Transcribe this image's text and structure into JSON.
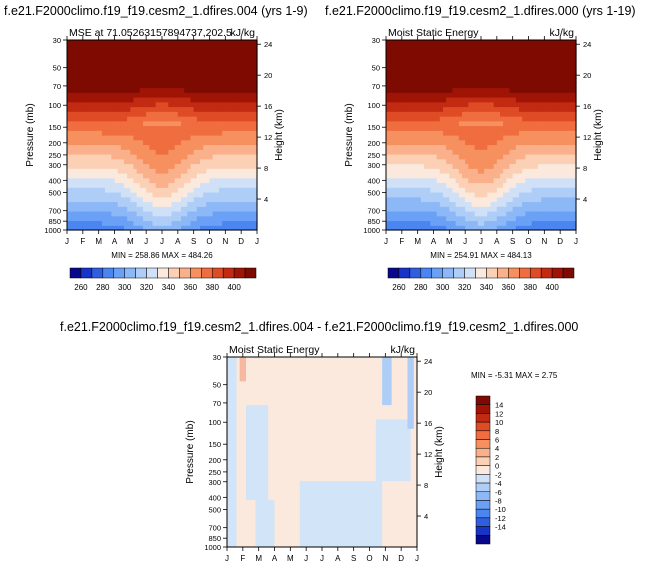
{
  "titles": {
    "left": "f.e21.F2000climo.f19_f19.cesm2_1.dfires.004 (yrs 1-9)",
    "right": "f.e21.F2000climo.f19_f19.cesm2_1.dfires.000 (yrs 1-19)",
    "bottom": "f.e21.F2000climo.f19_f19.cesm2_1.dfires.004 - f.e21.F2000climo.f19_f19.cesm2_1.dfires.000"
  },
  "chart_data": [
    {
      "type": "heatmap",
      "id": "left",
      "title_left": "MSE at 71.05263157894737,202.5",
      "title_right": "kJ/kg",
      "ylabel": "Pressure (mb)",
      "y2label": "Height (km)",
      "x_ticks": [
        "J",
        "F",
        "M",
        "A",
        "M",
        "J",
        "J",
        "A",
        "S",
        "O",
        "N",
        "D",
        "J"
      ],
      "y_ticks": [
        "30",
        "50",
        "70",
        "100",
        "150",
        "200",
        "250",
        "300",
        "400",
        "500",
        "700",
        "850",
        "1000"
      ],
      "y2_ticks": [
        "24",
        "20",
        "16",
        "12",
        "8",
        "4"
      ],
      "stats": "MIN = 258.86  MAX = 484.26",
      "colorbar_labels": [
        "260",
        "280",
        "300",
        "320",
        "340",
        "360",
        "380",
        "400"
      ],
      "colorbar_levels": [
        250,
        260,
        270,
        280,
        290,
        300,
        310,
        320,
        330,
        340,
        350,
        360,
        370,
        380,
        390,
        400,
        410
      ],
      "colors": [
        "#08088c",
        "#1733c8",
        "#2f5fe0",
        "#4a85f0",
        "#6aa0f5",
        "#8cb8f7",
        "#aecdf7",
        "#cfe0f7",
        "#fbe9dd",
        "#fbd0b5",
        "#fab08a",
        "#f6905f",
        "#ef6d3e",
        "#de4b24",
        "#c22b12",
        "#a01406",
        "#7e0b02"
      ],
      "ylim_mb": [
        1000,
        30
      ]
    },
    {
      "type": "heatmap",
      "id": "right",
      "title_left": "Moist Static Energy",
      "title_right": "kJ/kg",
      "ylabel": "Pressure (mb)",
      "y2label": "Height (km)",
      "x_ticks": [
        "J",
        "F",
        "M",
        "A",
        "M",
        "J",
        "J",
        "A",
        "S",
        "O",
        "N",
        "D",
        "J"
      ],
      "y_ticks": [
        "30",
        "50",
        "70",
        "100",
        "150",
        "200",
        "250",
        "300",
        "400",
        "500",
        "700",
        "850",
        "1000"
      ],
      "y2_ticks": [
        "24",
        "20",
        "16",
        "12",
        "8",
        "4"
      ],
      "stats": "MIN = 254.91  MAX = 484.13",
      "colorbar_labels": [
        "260",
        "280",
        "300",
        "320",
        "340",
        "360",
        "380",
        "400"
      ],
      "ylim_mb": [
        1000,
        30
      ]
    },
    {
      "type": "heatmap",
      "id": "diff",
      "title_left": "Moist Static Energy",
      "title_right": "kJ/kg",
      "ylabel": "Pressure (mb)",
      "y2label": "Height (km)",
      "x_ticks": [
        "J",
        "F",
        "M",
        "A",
        "M",
        "J",
        "J",
        "A",
        "S",
        "O",
        "N",
        "D",
        "J"
      ],
      "y_ticks": [
        "30",
        "50",
        "70",
        "100",
        "150",
        "200",
        "250",
        "300",
        "400",
        "500",
        "700",
        "850",
        "1000"
      ],
      "y2_ticks": [
        "24",
        "20",
        "16",
        "12",
        "8",
        "4"
      ],
      "stats": "MIN = -5.31  MAX =   2.75",
      "colorbar_labels": [
        "14",
        "12",
        "10",
        "8",
        "6",
        "4",
        "2",
        "0",
        "-2",
        "-4",
        "-6",
        "-8",
        "-10",
        "-12",
        "-14"
      ],
      "colors_top_to_bottom": [
        "#7e0b02",
        "#a01406",
        "#c22b12",
        "#de4b24",
        "#ef6d3e",
        "#f6905f",
        "#fab08a",
        "#fbd0b5",
        "#fbe9dd",
        "#cfe0f7",
        "#aecdf7",
        "#8cb8f7",
        "#6aa0f5",
        "#4a85f0",
        "#2f5fe0",
        "#1733c8",
        "#08088c"
      ],
      "ylim_mb": [
        1000,
        30
      ]
    }
  ]
}
